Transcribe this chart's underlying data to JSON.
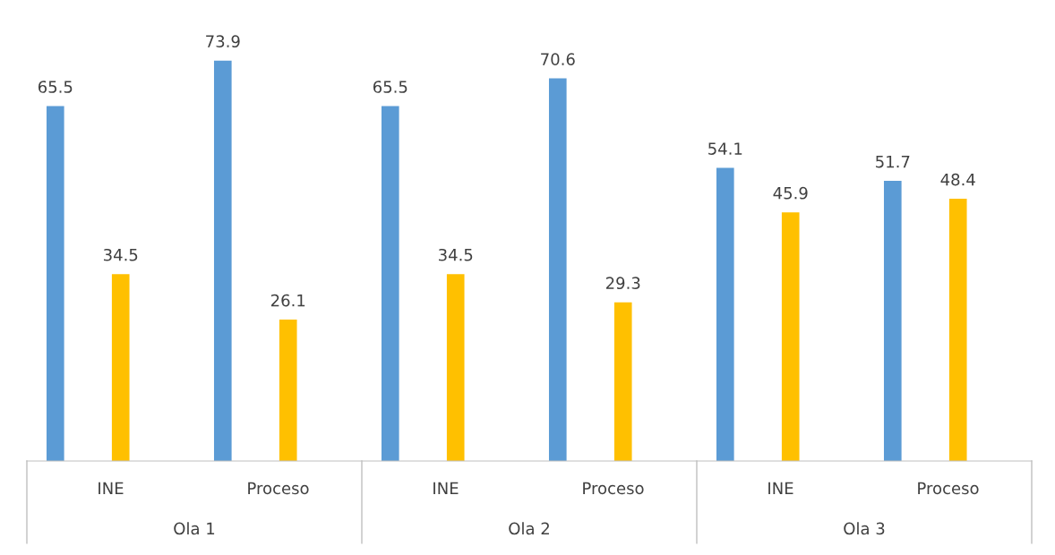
{
  "chart_data": {
    "type": "bar",
    "categories": [
      "INE",
      "Proceso",
      "INE",
      "Proceso",
      "INE",
      "Proceso"
    ],
    "series": [
      {
        "color": "#5b9bd5",
        "values": [
          65.5,
          73.9,
          65.5,
          70.6,
          54.1,
          51.7
        ]
      },
      {
        "color": "#ffc000",
        "values": [
          34.5,
          26.1,
          34.5,
          29.3,
          45.9,
          48.4
        ]
      }
    ],
    "annotations": [
      "Ola 1",
      "Ola 2",
      "Ola 3"
    ],
    "data_labels": true,
    "tick_labels": "x"
  }
}
